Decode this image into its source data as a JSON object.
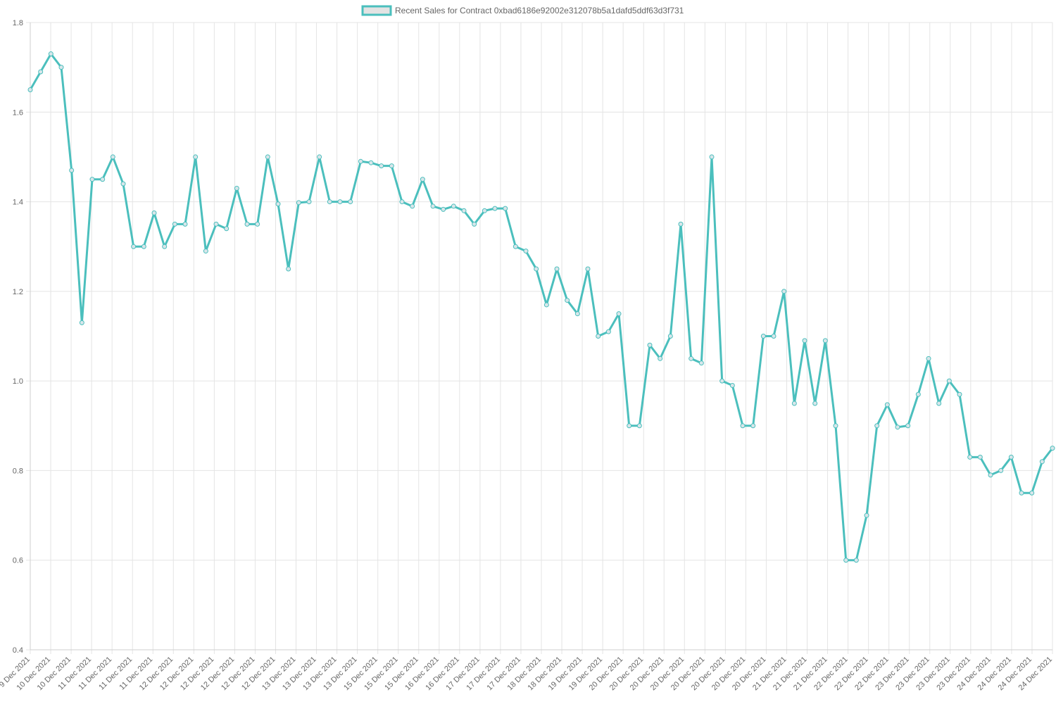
{
  "chart_data": {
    "type": "line",
    "legend_position": "top-center",
    "grid": true,
    "ylim": [
      0.4,
      1.8
    ],
    "y_ticks": [
      "1.8",
      "1.6",
      "1.4",
      "1.2",
      "1.0",
      "0.8",
      "0.6",
      "0.4"
    ],
    "series": [
      {
        "name": "Recent Sales for Contract 0xbad6186e92002e312078b5a1dafd5ddf63d3f731",
        "color": "#4bbfbd",
        "point_fill": "#d8e6ea",
        "values": [
          1.65,
          1.69,
          1.73,
          1.7,
          1.47,
          1.13,
          1.45,
          1.45,
          1.5,
          1.44,
          1.3,
          1.3,
          1.375,
          1.3,
          1.35,
          1.35,
          1.5,
          1.29,
          1.35,
          1.34,
          1.43,
          1.35,
          1.35,
          1.5,
          1.395,
          1.25,
          1.398,
          1.4,
          1.5,
          1.4,
          1.4,
          1.4,
          1.49,
          1.487,
          1.48,
          1.48,
          1.4,
          1.39,
          1.45,
          1.39,
          1.383,
          1.39,
          1.38,
          1.35,
          1.38,
          1.385,
          1.385,
          1.3,
          1.29,
          1.25,
          1.17,
          1.25,
          1.18,
          1.15,
          1.25,
          1.1,
          1.11,
          1.15,
          0.9,
          0.9,
          1.08,
          1.05,
          1.1,
          1.35,
          1.05,
          1.04,
          1.5,
          1.0,
          0.99,
          0.9,
          0.9,
          1.1,
          1.1,
          1.2,
          0.95,
          1.09,
          0.95,
          1.09,
          0.9,
          0.6,
          0.6,
          0.7,
          0.9,
          0.947,
          0.897,
          0.9,
          0.97,
          1.05,
          0.95,
          1.0,
          0.97,
          0.83,
          0.83,
          0.79,
          0.8,
          0.83,
          0.75,
          0.75,
          0.82,
          0.85
        ]
      }
    ],
    "x_tick_labels": [
      "9 Dec 2021",
      "10 Dec 2021",
      "10 Dec 2021",
      "11 Dec 2021",
      "11 Dec 2021",
      "11 Dec 2021",
      "11 Dec 2021",
      "12 Dec 2021",
      "12 Dec 2021",
      "12 Dec 2021",
      "12 Dec 2021",
      "12 Dec 2021",
      "12 Dec 2021",
      "13 Dec 2021",
      "13 Dec 2021",
      "13 Dec 2021",
      "13 Dec 2021",
      "15 Dec 2021",
      "15 Dec 2021",
      "15 Dec 2021",
      "16 Dec 2021",
      "16 Dec 2021",
      "17 Dec 2021",
      "17 Dec 2021",
      "17 Dec 2021",
      "18 Dec 2021",
      "18 Dec 2021",
      "19 Dec 2021",
      "19 Dec 2021",
      "20 Dec 2021",
      "20 Dec 2021",
      "20 Dec 2021",
      "20 Dec 2021",
      "20 Dec 2021",
      "20 Dec 2021",
      "20 Dec 2021",
      "20 Dec 2021",
      "21 Dec 2021",
      "21 Dec 2021",
      "21 Dec 2021",
      "22 Dec 2021",
      "22 Dec 2021",
      "22 Dec 2021",
      "23 Dec 2021",
      "23 Dec 2021",
      "23 Dec 2021",
      "23 Dec 2021",
      "24 Dec 2021",
      "24 Dec 2021",
      "24 Dec 2021",
      "24 Dec 2021"
    ]
  }
}
